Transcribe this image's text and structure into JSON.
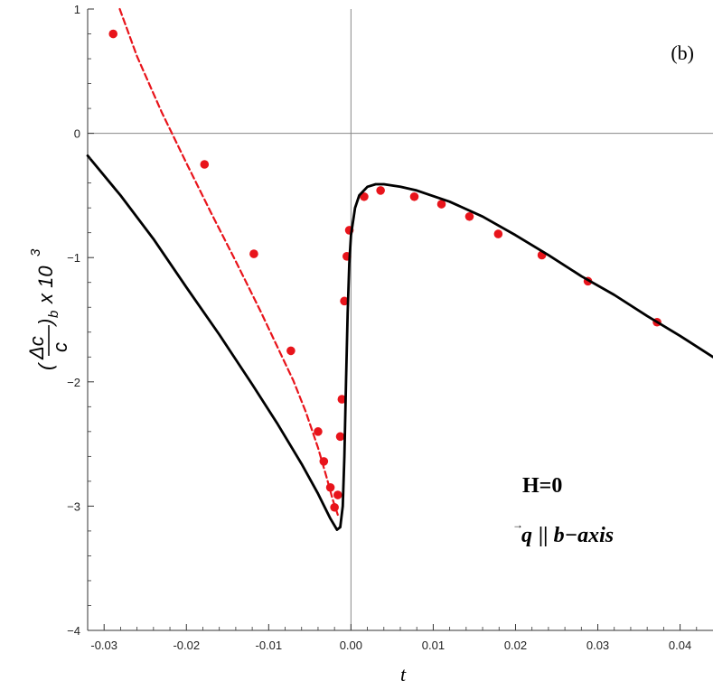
{
  "chart_data": {
    "type": "line",
    "panel_label": "(b)",
    "xlabel": "t",
    "ylabel": {
      "numerator": "Δc",
      "denominator": "c",
      "subscript": "b",
      "factor_text": "x 10",
      "exponent": "3"
    },
    "xlim": [
      -0.032,
      0.044
    ],
    "ylim": [
      -4,
      1
    ],
    "x_ticks": [
      {
        "value": -0.03,
        "label": "-0.03"
      },
      {
        "value": -0.02,
        "label": "-0.02"
      },
      {
        "value": -0.01,
        "label": "-0.01"
      },
      {
        "value": 0.0,
        "label": "0.00"
      },
      {
        "value": 0.01,
        "label": "0.01"
      },
      {
        "value": 0.02,
        "label": "0.02"
      },
      {
        "value": 0.03,
        "label": "0.03"
      },
      {
        "value": 0.04,
        "label": "0.04"
      }
    ],
    "y_ticks": [
      {
        "value": 1,
        "label": "1"
      },
      {
        "value": 0,
        "label": "0"
      },
      {
        "value": -1,
        "label": "−1"
      },
      {
        "value": -2,
        "label": "−2"
      },
      {
        "value": -3,
        "label": "−3"
      },
      {
        "value": -4,
        "label": "−4"
      }
    ],
    "annotations": {
      "field": "H=0",
      "q_symbol": "q",
      "q_text": " || b−axis"
    },
    "colors": {
      "points": "#e8141b",
      "dashed": "#e8141b",
      "solid": "#000000",
      "axes": "#888888"
    },
    "series": [
      {
        "style": "points",
        "x": [
          -0.0289,
          -0.0178,
          -0.0118,
          -0.0073,
          -0.004,
          -0.0033,
          -0.0025,
          -0.002,
          -0.0016,
          -0.0013,
          -0.0011,
          -0.0008,
          -0.0005,
          -0.0002,
          0.0016,
          0.0036,
          0.0077,
          0.011,
          0.0144,
          0.0179,
          0.0232,
          0.0288,
          0.0372
        ],
        "y": [
          0.8,
          -0.25,
          -0.97,
          -1.75,
          -2.4,
          -2.64,
          -2.85,
          -3.01,
          -2.91,
          -2.44,
          -2.14,
          -1.35,
          -0.99,
          -0.78,
          -0.51,
          -0.46,
          -0.51,
          -0.57,
          -0.67,
          -0.81,
          -0.98,
          -1.19,
          -1.52
        ]
      },
      {
        "style": "dashed",
        "x": [
          -0.0281,
          -0.026,
          -0.023,
          -0.02,
          -0.017,
          -0.014,
          -0.011,
          -0.009,
          -0.007,
          -0.0055,
          -0.004,
          -0.003,
          -0.0022,
          -0.0016
        ],
        "y": [
          1.0,
          0.62,
          0.17,
          -0.24,
          -0.64,
          -1.03,
          -1.43,
          -1.71,
          -1.99,
          -2.24,
          -2.53,
          -2.76,
          -2.95,
          -3.07
        ]
      },
      {
        "style": "solid",
        "x": [
          -0.032,
          -0.028,
          -0.024,
          -0.02,
          -0.016,
          -0.012,
          -0.009,
          -0.006,
          -0.004,
          -0.0025,
          -0.0017,
          -0.0013,
          -0.001,
          -0.0008,
          -0.0006,
          -0.0004,
          -0.0002,
          0.0,
          0.0005,
          0.001,
          0.002,
          0.003,
          0.004,
          0.006,
          0.008,
          0.012,
          0.016,
          0.02,
          0.024,
          0.028,
          0.032,
          0.036,
          0.04,
          0.044
        ],
        "y": [
          -0.18,
          -0.5,
          -0.85,
          -1.24,
          -1.62,
          -2.02,
          -2.33,
          -2.66,
          -2.9,
          -3.1,
          -3.19,
          -3.17,
          -3.0,
          -2.6,
          -2.0,
          -1.45,
          -1.05,
          -0.82,
          -0.6,
          -0.5,
          -0.43,
          -0.41,
          -0.41,
          -0.43,
          -0.46,
          -0.55,
          -0.67,
          -0.82,
          -0.98,
          -1.15,
          -1.3,
          -1.47,
          -1.63,
          -1.8
        ]
      }
    ]
  }
}
